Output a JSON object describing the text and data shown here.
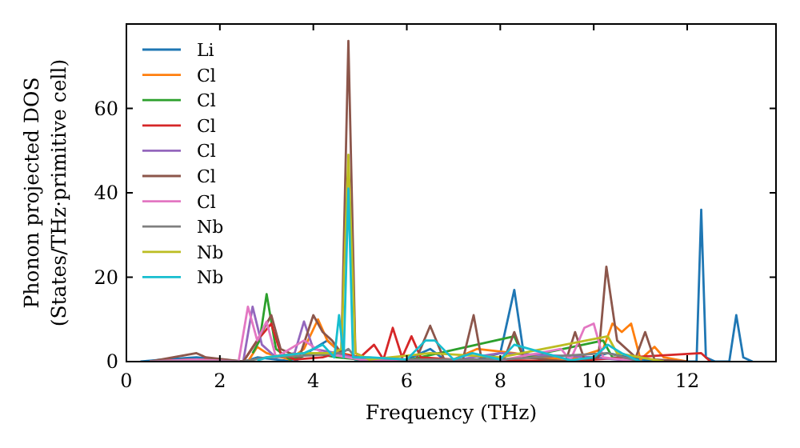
{
  "chart_data": {
    "type": "line",
    "xlabel": "Frequency (THz)",
    "ylabel": "Phonon projected DOS\n(States/THz·primitive cell)",
    "xlim": [
      0,
      13.9
    ],
    "ylim": [
      0,
      80
    ],
    "xticks": [
      0,
      2,
      4,
      6,
      8,
      10,
      12
    ],
    "yticks": [
      0,
      20,
      40,
      60
    ],
    "legend": "top left",
    "grid": false,
    "marker": "none",
    "line_style": "solid",
    "series": [
      {
        "name": "Li",
        "color": "#1f77b4",
        "x": [
          0.3,
          0.8,
          1.5,
          2.0,
          2.5,
          2.8,
          3.2,
          3.6,
          4.0,
          4.3,
          4.6,
          4.9,
          5.2,
          6.0,
          6.5,
          6.8,
          7.5,
          8.0,
          8.3,
          8.5,
          9.0,
          9.5,
          10.0,
          10.3,
          11.0,
          12.0,
          12.2,
          12.3,
          12.4,
          12.6,
          12.9,
          13.05,
          13.2,
          13.4
        ],
        "values": [
          0,
          0.5,
          1,
          0.5,
          0,
          1,
          0.5,
          0,
          3,
          5,
          2,
          0.5,
          0.3,
          0.5,
          3,
          0.5,
          0.5,
          2,
          17,
          2,
          0.5,
          0.3,
          1,
          2,
          0.5,
          0,
          0,
          36,
          1,
          0,
          0,
          11,
          1,
          0
        ]
      },
      {
        "name": "Cl",
        "color": "#ff7f0e",
        "x": [
          0.5,
          1.5,
          2.6,
          2.8,
          3.0,
          3.5,
          3.8,
          4.1,
          4.3,
          4.6,
          5.0,
          6.0,
          7.0,
          7.5,
          8.3,
          8.8,
          9.5,
          10.2,
          10.4,
          10.6,
          10.8,
          11.0,
          11.3,
          11.5,
          12.0
        ],
        "values": [
          0,
          0.5,
          0,
          3.5,
          2,
          0.5,
          3,
          10,
          5,
          2,
          1,
          0.5,
          0.5,
          3,
          2,
          1,
          0.5,
          3,
          9,
          7,
          9,
          0.5,
          3.5,
          1,
          0
        ]
      },
      {
        "name": "Cl",
        "color": "#2ca02c",
        "x": [
          2.7,
          2.85,
          3.0,
          3.2,
          3.5,
          4.0,
          4.5,
          5.0,
          6.0,
          8.3,
          8.5,
          10.2,
          10.4,
          11.0
        ],
        "values": [
          2,
          5,
          16,
          3,
          0.5,
          2,
          1,
          0.5,
          0.3,
          6,
          1,
          5,
          1,
          0
        ]
      },
      {
        "name": "Cl",
        "color": "#d62728",
        "x": [
          0.5,
          1.5,
          2.5,
          2.8,
          3.1,
          3.3,
          3.6,
          4.2,
          4.5,
          5.0,
          5.3,
          5.5,
          5.7,
          5.9,
          6.1,
          6.3,
          7.0,
          7.5,
          9.5,
          10.0,
          12.3,
          12.5
        ],
        "values": [
          0,
          0.5,
          0,
          5,
          9,
          2,
          0.5,
          1,
          2,
          1,
          4,
          0.5,
          8,
          1,
          6,
          1,
          0.5,
          0.5,
          0,
          0.5,
          2,
          0
        ]
      },
      {
        "name": "Cl",
        "color": "#9467bd",
        "x": [
          0.5,
          1.5,
          2.5,
          2.7,
          2.9,
          3.2,
          3.6,
          3.8,
          4.0,
          4.5,
          5.0,
          7.0,
          8.0,
          10.0,
          11.0
        ],
        "values": [
          0,
          0.3,
          0,
          13,
          4,
          1,
          2,
          9.5,
          3,
          2,
          0.5,
          0.3,
          2,
          1,
          0
        ]
      },
      {
        "name": "Cl",
        "color": "#8c564b",
        "x": [
          0.5,
          1.5,
          1.7,
          2.5,
          2.8,
          3.1,
          3.3,
          3.7,
          4.0,
          4.2,
          4.4,
          4.6,
          4.75,
          4.9,
          5.2,
          6.2,
          6.5,
          6.8,
          7.2,
          7.43,
          7.6,
          8.1,
          8.3,
          8.5,
          9.4,
          9.6,
          9.8,
          10.1,
          10.27,
          10.5,
          10.9,
          11.1,
          11.3,
          12.0
        ],
        "values": [
          0,
          2,
          1,
          0,
          5,
          11,
          3,
          1,
          11,
          7,
          5,
          2,
          76,
          2,
          0.5,
          0.5,
          8.5,
          0.5,
          0.5,
          11,
          0.5,
          1,
          7,
          1,
          0,
          7,
          0.5,
          1,
          22.5,
          5,
          1,
          7,
          0.5,
          0
        ]
      },
      {
        "name": "Cl",
        "color": "#e377c2",
        "x": [
          0.5,
          1.5,
          2.4,
          2.6,
          2.8,
          3.0,
          3.2,
          3.8,
          4.2,
          5.0,
          8.0,
          9.3,
          9.5,
          9.8,
          10.0,
          10.2,
          11.0
        ],
        "values": [
          0,
          0.5,
          0,
          13,
          5,
          9.5,
          1,
          5,
          2,
          0.5,
          0.3,
          3,
          0.3,
          8,
          9,
          1,
          0
        ]
      },
      {
        "name": "Nb",
        "color": "#7f7f7f",
        "x": [
          0.5,
          2.5,
          3.0,
          4.0,
          4.6,
          4.75,
          4.9,
          6.0,
          8.0,
          10.3,
          11.0
        ],
        "values": [
          0,
          0,
          1,
          1.5,
          2,
          3,
          1,
          0.5,
          0.5,
          2,
          0
        ]
      },
      {
        "name": "Nb",
        "color": "#bcbd22",
        "x": [
          3.0,
          3.8,
          4.4,
          4.6,
          4.75,
          4.9,
          5.2,
          6.5,
          8.0,
          10.3,
          10.5,
          11.5
        ],
        "values": [
          1,
          2,
          2,
          3,
          49,
          2,
          0.5,
          2,
          1,
          6,
          2,
          0
        ]
      },
      {
        "name": "Nb",
        "color": "#17becf",
        "x": [
          2.8,
          2.9,
          3.0,
          3.8,
          4.2,
          4.45,
          4.55,
          4.65,
          4.75,
          4.85,
          5.2,
          6.0,
          6.4,
          6.6,
          7.0,
          7.4,
          8.0,
          8.3,
          9.5,
          10.0,
          10.3,
          10.6,
          11.0
        ],
        "values": [
          0.3,
          0.6,
          1,
          2,
          4,
          1,
          11,
          1,
          41,
          1,
          1,
          0.5,
          5,
          5,
          0.5,
          2,
          0.5,
          4,
          0.3,
          1,
          4,
          2,
          0
        ]
      }
    ]
  }
}
